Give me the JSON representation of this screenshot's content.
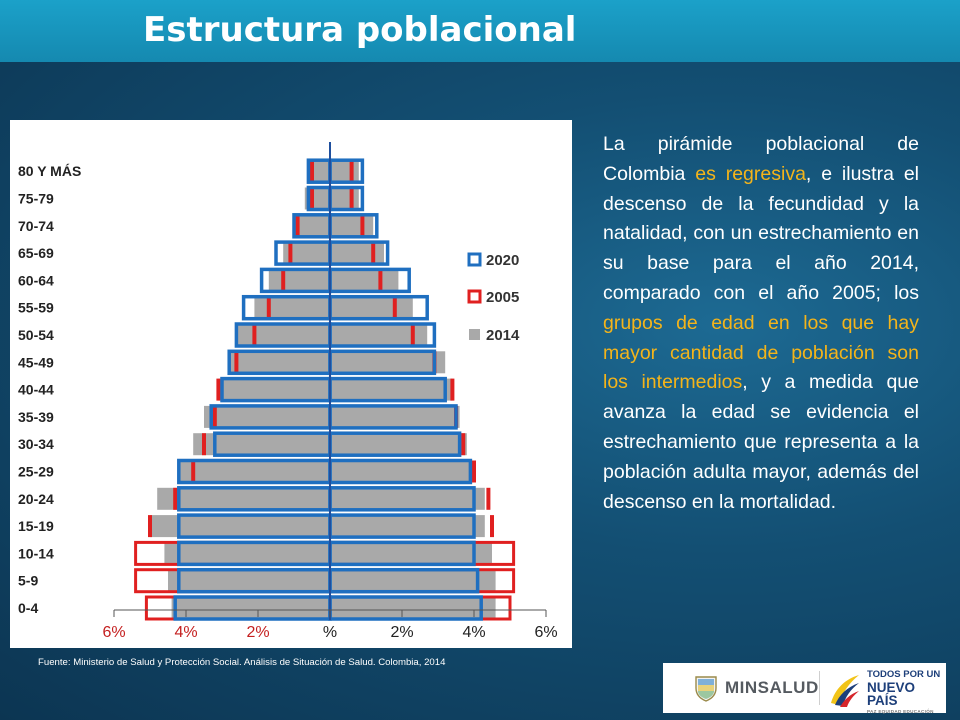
{
  "title": "Estructura poblacional",
  "description": {
    "part1": "La pirámide poblacional de Colombia ",
    "highlight1": "es regresiva",
    "part2": ", e ilustra el descenso de la fecundidad y la natalidad, con un estrechamiento en su base para el año 2014, comparado con el año 2005; los ",
    "highlight2": "grupos de edad en los que hay mayor cantidad de población son los intermedios",
    "part3": ", y a medida que avanza la edad se evidencia el estrechamiento que representa a la población adulta mayor, además del descenso en la mortalidad."
  },
  "source": "Fuente: Ministerio de Salud y Protección Social. Análisis de Situación de Salud. Colombia, 2014",
  "logos": {
    "minsalud": "MINSALUD",
    "todos_line1": "TODOS POR UN",
    "todos_line2": "NUEVO PAÍS",
    "todos_line3": "PAZ  EQUIDAD  EDUCACIÓN"
  },
  "colors": {
    "title_bar": "#1ba1c9",
    "highlight": "#f4b41a",
    "series_2020": "#1f6fc0",
    "series_2005": "#e02020",
    "series_2014": "#a9a9a9"
  },
  "chart_data": {
    "type": "bar",
    "orientation": "horizontal",
    "subtype": "population pyramid",
    "categories": [
      "0-4",
      "5-9",
      "10-14",
      "15-19",
      "20-24",
      "25-29",
      "30-34",
      "35-39",
      "40-44",
      "45-49",
      "50-54",
      "55-59",
      "60-64",
      "65-69",
      "70-74",
      "75-79",
      "80 Y MÁS"
    ],
    "x_ticks": [
      "6%",
      "4%",
      "2%",
      "%",
      "2%",
      "4%",
      "6%"
    ],
    "xlim": [
      -6,
      6
    ],
    "legend_position": "right",
    "series": [
      {
        "name": "2020",
        "style": "outline",
        "left": [
          4.3,
          4.2,
          4.2,
          4.2,
          4.2,
          4.2,
          3.2,
          3.3,
          3.0,
          2.8,
          2.6,
          2.4,
          1.9,
          1.5,
          1.0,
          0.6,
          0.6
        ],
        "right": [
          4.2,
          4.1,
          4.0,
          4.0,
          4.0,
          3.9,
          3.6,
          3.5,
          3.2,
          2.9,
          2.9,
          2.7,
          2.2,
          1.6,
          1.3,
          0.9,
          0.9
        ]
      },
      {
        "name": "2005",
        "style": "marker",
        "left": [
          5.1,
          5.4,
          5.4,
          5.0,
          4.3,
          3.8,
          3.5,
          3.2,
          3.1,
          2.6,
          2.1,
          1.7,
          1.3,
          1.1,
          0.9,
          0.5,
          0.5
        ],
        "right": [
          5.0,
          5.1,
          5.1,
          4.5,
          4.4,
          4.0,
          3.7,
          3.5,
          3.4,
          2.9,
          2.3,
          1.8,
          1.4,
          1.2,
          0.9,
          0.6,
          0.6
        ]
      },
      {
        "name": "2014",
        "style": "fill",
        "left": [
          4.4,
          4.5,
          4.6,
          5.0,
          4.8,
          4.2,
          3.8,
          3.5,
          3.1,
          2.8,
          2.6,
          2.1,
          1.7,
          1.3,
          1.0,
          0.7,
          0.6
        ],
        "right": [
          4.6,
          4.6,
          4.5,
          4.3,
          4.3,
          4.0,
          3.8,
          3.6,
          3.4,
          3.2,
          2.7,
          2.3,
          1.9,
          1.5,
          1.2,
          0.8,
          0.8
        ]
      }
    ]
  }
}
